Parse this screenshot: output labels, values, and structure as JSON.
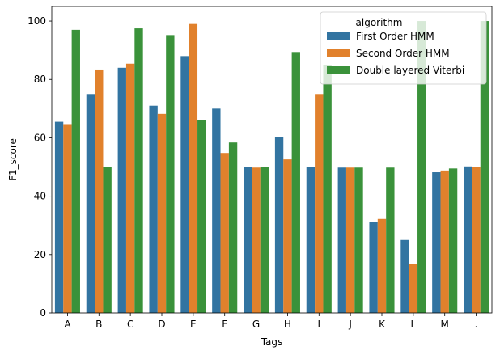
{
  "chart_data": {
    "type": "bar",
    "title": "",
    "xlabel": "Tags",
    "ylabel": "F1_score",
    "ylim": [
      0,
      105
    ],
    "yticks": [
      0,
      20,
      40,
      60,
      80,
      100
    ],
    "categories": [
      "A",
      "B",
      "C",
      "D",
      "E",
      "F",
      "G",
      "H",
      "I",
      "J",
      "K",
      "L",
      "M",
      "."
    ],
    "legend": {
      "title": "algorithm",
      "placement": "top-right"
    },
    "series": [
      {
        "name": "First Order HMM",
        "color": "#3274a1",
        "values": [
          65.5,
          75,
          84,
          71,
          88,
          70,
          50,
          60.3,
          50,
          49.8,
          31.3,
          25,
          48.2,
          50.2
        ]
      },
      {
        "name": "Second Order HMM",
        "color": "#e1812c",
        "values": [
          64.7,
          83.4,
          85.4,
          68.2,
          99,
          54.8,
          49.8,
          52.6,
          75,
          49.8,
          32.2,
          16.8,
          48.8,
          50
        ]
      },
      {
        "name": "Double layered Viterbi",
        "color": "#3a923a",
        "values": [
          97,
          50,
          97.5,
          95.2,
          66,
          58.4,
          50,
          89.4,
          85,
          49.8,
          49.8,
          100,
          49.5,
          100
        ]
      }
    ]
  }
}
